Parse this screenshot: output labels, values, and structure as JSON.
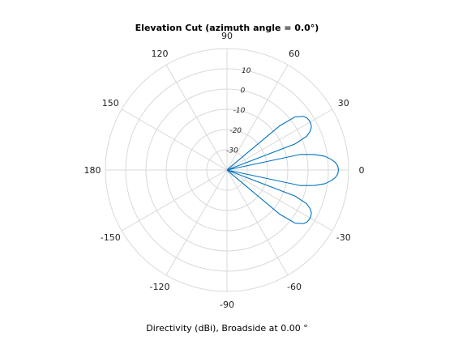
{
  "chart_data": {
    "type": "line",
    "projection": "polar",
    "title": "Elevation Cut (azimuth angle = 0.0°)",
    "xlabel": "Directivity (dBi), Broadside at 0.00 °",
    "angle_ticks": [
      0,
      30,
      60,
      90,
      120,
      150,
      180,
      -150,
      -120,
      -90,
      -60,
      -30
    ],
    "radial_ticks": [
      -30,
      -20,
      -10,
      0,
      10
    ],
    "radial_tick_labels": [
      "-30",
      "-20",
      "-10",
      "0",
      "10"
    ],
    "rlim": [
      -40,
      20
    ],
    "angle_direction": "counterclockwise",
    "zero_location": "right",
    "grid": true,
    "colors": {
      "series": "#0072BD",
      "grid": "#d9d9d9",
      "text": "#222222"
    },
    "series": [
      {
        "angle_deg": [
          -90,
          -60,
          -50,
          -45,
          -42,
          -40,
          -38,
          -35,
          -33,
          -31,
          -29,
          -27,
          -25,
          -23,
          -21,
          -19.5,
          -18,
          -15,
          -12,
          -10,
          -8,
          -6,
          -4,
          -2,
          0,
          2,
          4,
          6,
          8,
          10,
          12,
          15,
          18,
          19.5,
          21,
          23,
          25,
          27,
          29,
          31,
          33,
          35,
          38,
          40,
          42,
          45,
          50,
          60,
          90
        ],
        "directivity_dBi": [
          -40,
          -40,
          -40,
          -40,
          -38,
          -6,
          2.7,
          6.2,
          7.1,
          7.4,
          7.3,
          6.7,
          5.3,
          2.7,
          -4,
          -40,
          -40,
          -40,
          -3,
          4,
          8.7,
          11.5,
          13.6,
          14.7,
          15,
          14.7,
          13.6,
          11.5,
          8.7,
          4,
          -3,
          -40,
          -40,
          -40,
          -4,
          2.7,
          5.3,
          6.7,
          7.3,
          7.4,
          7.1,
          6.2,
          2.7,
          -6,
          -38,
          -40,
          -40,
          -40,
          -40
        ]
      }
    ]
  }
}
